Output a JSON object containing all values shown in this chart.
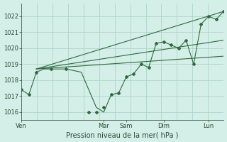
{
  "background_color": "#d4eee8",
  "plot_bg_color": "#d4eee8",
  "grid_color": "#b0d4c8",
  "line_color": "#2d6b3c",
  "xlabel": "Pression niveau de la mer( hPa )",
  "xlabel_fontsize": 7,
  "ylim": [
    1015.5,
    1022.8
  ],
  "yticks": [
    1016,
    1017,
    1018,
    1019,
    1020,
    1021,
    1022
  ],
  "ytick_fontsize": 6,
  "xtick_fontsize": 6,
  "day_labels": [
    "Ven",
    "Mar",
    "Sam",
    "Dim",
    "Lun"
  ],
  "day_positions": [
    0.0,
    5.5,
    7.0,
    9.5,
    12.5
  ],
  "x_total_min": 0.0,
  "x_total_max": 13.5,
  "num_vert_lines": 14,
  "num_horiz_lines": 7,
  "trend1_x": [
    1.0,
    13.5
  ],
  "trend1_y": [
    1018.7,
    1022.3
  ],
  "trend2_x": [
    1.0,
    13.5
  ],
  "trend2_y": [
    1018.7,
    1020.5
  ],
  "trend3_x": [
    1.0,
    13.5
  ],
  "trend3_y": [
    1018.7,
    1019.5
  ],
  "main_x": [
    0.0,
    0.5,
    1.0,
    1.5,
    2.0,
    3.0,
    4.0,
    5.0,
    5.5,
    6.0,
    6.5,
    7.0,
    7.5,
    8.0,
    8.5,
    9.0,
    9.5,
    10.0,
    10.5,
    11.0,
    11.5,
    12.0,
    12.5,
    13.0,
    13.5
  ],
  "main_y": [
    1017.4,
    1017.1,
    1018.5,
    1018.7,
    1018.7,
    1018.7,
    1018.5,
    1016.3,
    1016.0,
    1017.1,
    1017.2,
    1018.2,
    1018.4,
    1019.0,
    1018.8,
    1020.3,
    1020.4,
    1020.2,
    1020.0,
    1020.5,
    1019.0,
    1021.5,
    1022.0,
    1021.8,
    1022.3
  ],
  "marker_x": [
    0.0,
    0.5,
    1.0,
    2.0,
    3.0,
    4.5,
    5.0,
    5.5,
    6.0,
    6.5,
    7.0,
    7.5,
    8.0,
    8.5,
    9.0,
    9.5,
    10.0,
    10.5,
    11.0,
    11.5,
    12.0,
    12.5,
    13.0,
    13.5
  ],
  "marker_y": [
    1017.4,
    1017.1,
    1018.5,
    1018.7,
    1018.7,
    1016.0,
    1016.0,
    1016.3,
    1017.1,
    1017.2,
    1018.2,
    1018.4,
    1019.0,
    1018.8,
    1020.3,
    1020.4,
    1020.2,
    1020.0,
    1020.5,
    1019.0,
    1021.5,
    1022.0,
    1021.8,
    1022.3
  ],
  "figsize": [
    3.2,
    2.0
  ],
  "dpi": 100
}
